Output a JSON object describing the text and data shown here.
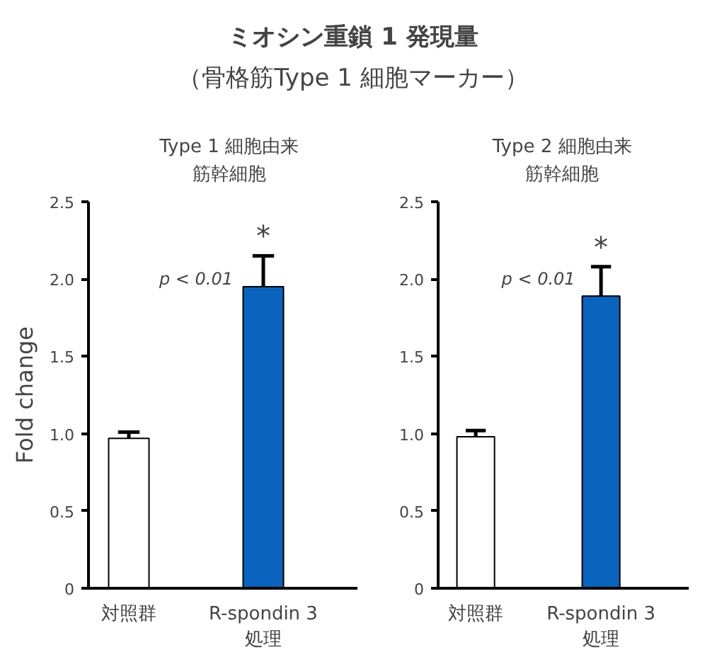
{
  "chart_data": [
    {
      "type": "other",
      "title": "ミオシン重鎖 1 発現量",
      "subtitle": "（骨格筋Type 1 細胞マーカー）"
    },
    {
      "type": "bar",
      "title": "Type 1 細胞由来筋幹細胞",
      "ylabel": "Fold change",
      "categories": [
        "対照群",
        "R-spondin 3\n処理"
      ],
      "values": [
        0.97,
        1.95
      ],
      "errors": [
        0.04,
        0.2
      ],
      "colors": [
        "#ffffff",
        "#0a64be"
      ],
      "ylim": [
        0,
        2.5
      ],
      "yticks": [
        0,
        {
          "value": 0.5,
          "label": "0.5"
        },
        {
          "value": 1,
          "label": "1.0"
        },
        {
          "value": 1.5,
          "label": "1.5"
        },
        {
          "value": 2,
          "label": "2.0"
        },
        {
          "value": 2.5,
          "label": "2.5"
        }
      ],
      "annotations": [
        "p < 0.01",
        "*"
      ]
    },
    {
      "type": "bar",
      "title": "Type 2 細胞由来筋幹細胞",
      "categories": [
        "対照群",
        "R-spondin 3\n処理"
      ],
      "values": [
        0.98,
        1.89
      ],
      "errors": [
        0.04,
        0.19
      ],
      "colors": [
        "#ffffff",
        "#0a64be"
      ],
      "ylim": [
        0,
        2.5
      ],
      "yticks": [
        0,
        {
          "value": 0.5,
          "label": "0.5"
        },
        {
          "value": 1,
          "label": "1.0"
        },
        {
          "value": 1.5,
          "label": "1.5"
        },
        {
          "value": 2,
          "label": "2.0"
        },
        {
          "value": 2.5,
          "label": "2.5"
        }
      ],
      "annotations": [
        "p < 0.01",
        "*"
      ]
    }
  ]
}
